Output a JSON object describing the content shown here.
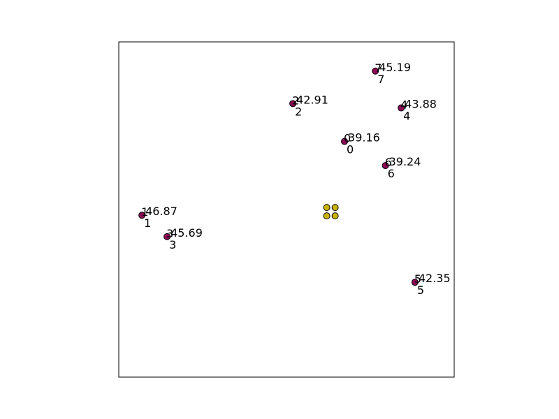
{
  "chart_data": {
    "type": "scatter",
    "xlim": [
      0,
      1
    ],
    "ylim": [
      0,
      1
    ],
    "grid": false,
    "axes_ticks": false,
    "colors": {
      "point": "#8c0a55",
      "center_marker": "#c8b400",
      "edge": "#000000",
      "frame": "#000000"
    },
    "points": [
      {
        "id": "0",
        "x": 0.673,
        "y": 0.703,
        "value": "39.16"
      },
      {
        "id": "1",
        "x": 0.069,
        "y": 0.483,
        "value": "46.87"
      },
      {
        "id": "2",
        "x": 0.519,
        "y": 0.816,
        "value": "42.91"
      },
      {
        "id": "3",
        "x": 0.144,
        "y": 0.419,
        "value": "45.69"
      },
      {
        "id": "4",
        "x": 0.842,
        "y": 0.803,
        "value": "43.88"
      },
      {
        "id": "5",
        "x": 0.883,
        "y": 0.283,
        "value": "42.35"
      },
      {
        "id": "6",
        "x": 0.795,
        "y": 0.631,
        "value": "39.24"
      },
      {
        "id": "7",
        "x": 0.765,
        "y": 0.913,
        "value": "45.19"
      }
    ],
    "center_markers": [
      {
        "x": 0.62,
        "y": 0.506
      },
      {
        "x": 0.645,
        "y": 0.506
      },
      {
        "x": 0.62,
        "y": 0.481
      },
      {
        "x": 0.645,
        "y": 0.481
      }
    ]
  }
}
